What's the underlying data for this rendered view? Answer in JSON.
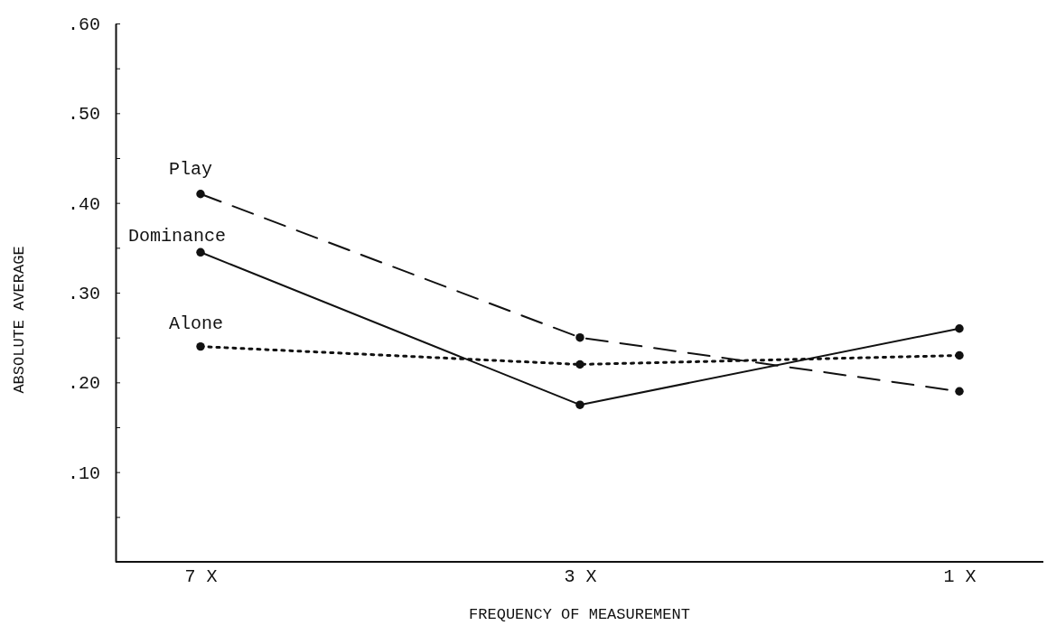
{
  "chart_data": {
    "type": "line",
    "xlabel": "FREQUENCY OF MEASUREMENT",
    "ylabel": "ABSOLUTE AVERAGE",
    "categories": [
      "7 X",
      "3 X",
      "1 X"
    ],
    "series": [
      {
        "name": "Play",
        "color": "#111111",
        "values": [
          0.41,
          0.25,
          0.19
        ],
        "line_style": "dashed"
      },
      {
        "name": "Dominance",
        "color": "#111111",
        "values": [
          0.345,
          0.175,
          0.26
        ],
        "line_style": "solid"
      },
      {
        "name": "Alone",
        "color": "#111111",
        "values": [
          0.24,
          0.22,
          0.23
        ],
        "line_style": "dotted"
      }
    ],
    "ylim": [
      0,
      0.6
    ],
    "yticks": [
      {
        "value": 0.05,
        "label": null
      },
      {
        "value": 0.1,
        "label": ".10"
      },
      {
        "value": 0.15,
        "label": null
      },
      {
        "value": 0.2,
        "label": ".20"
      },
      {
        "value": 0.25,
        "label": null
      },
      {
        "value": 0.3,
        "label": ".30"
      },
      {
        "value": 0.35,
        "label": null
      },
      {
        "value": 0.4,
        "label": ".40"
      },
      {
        "value": 0.45,
        "label": null
      },
      {
        "value": 0.5,
        "label": ".50"
      },
      {
        "value": 0.55,
        "label": null
      },
      {
        "value": 0.6,
        "label": ".60"
      }
    ],
    "marker": "circle",
    "legend": false,
    "grid": false
  }
}
